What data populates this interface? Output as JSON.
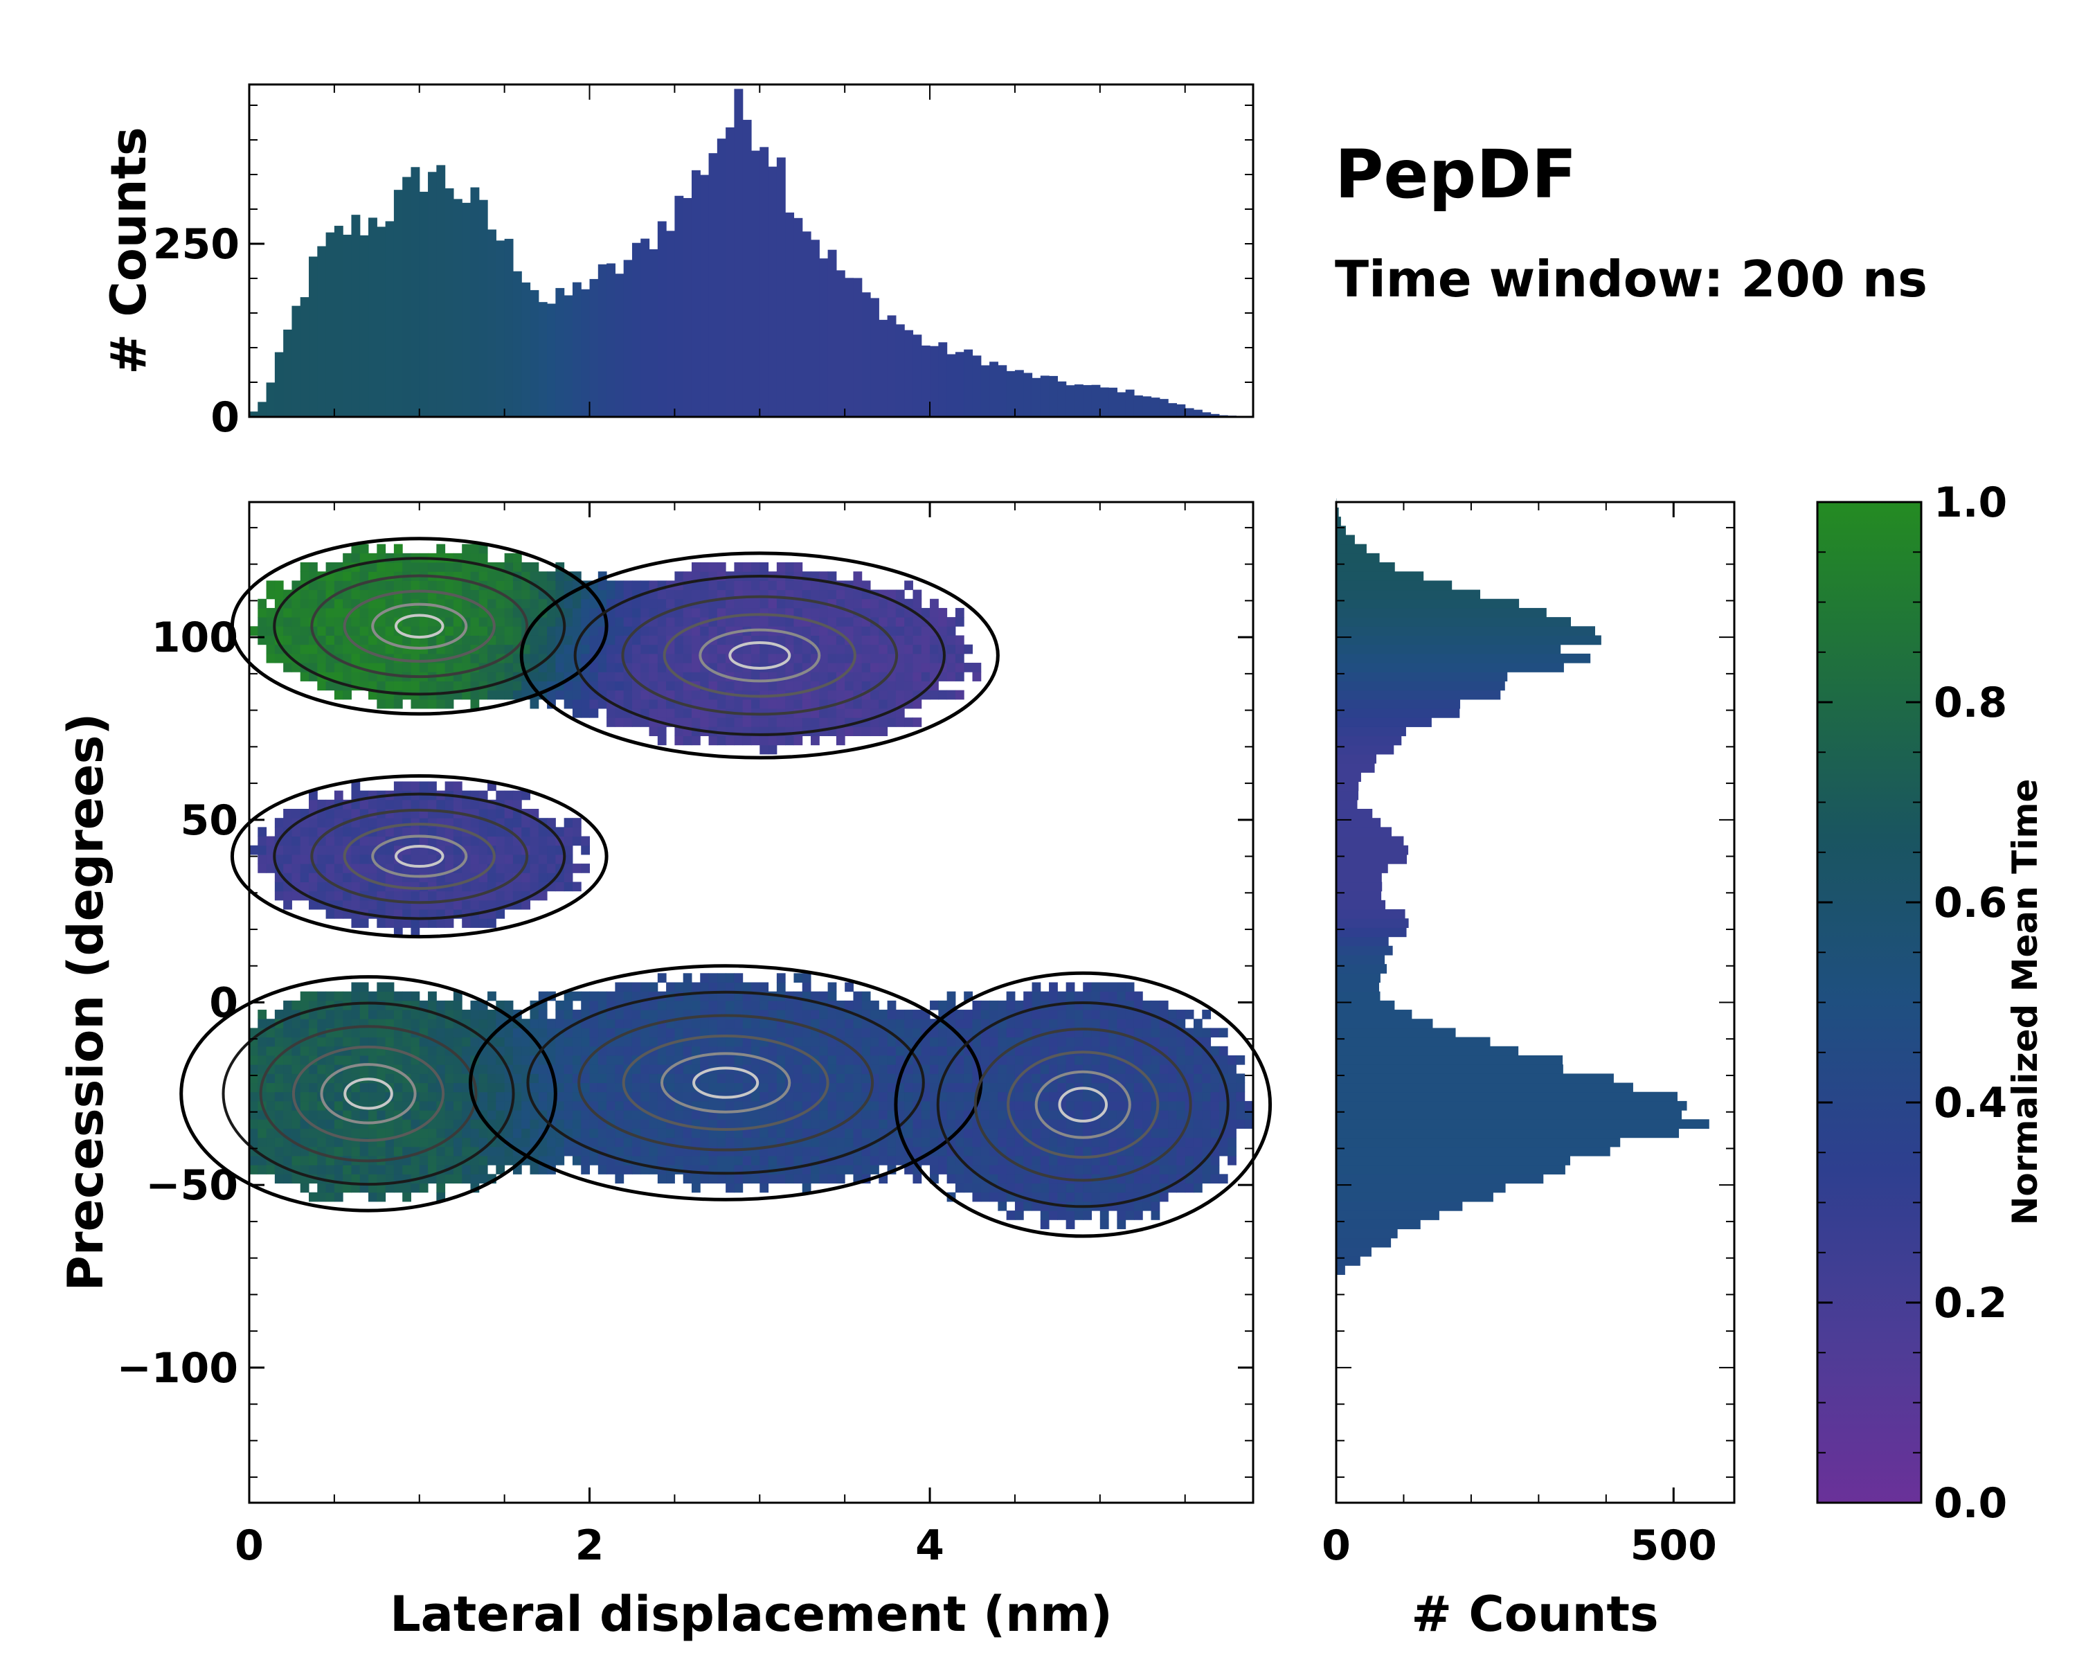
{
  "annotation": {
    "title": "PepDF",
    "subtitle": "Time window: 200 ns"
  },
  "chart_data": [
    {
      "id": "joint",
      "type": "heatmap",
      "xlabel": "Lateral displacement (nm)",
      "ylabel": "Precession (degrees)",
      "xlim": [
        0,
        5.9
      ],
      "ylim": [
        -137,
        137
      ],
      "xticks": [
        0,
        2,
        4
      ],
      "yticks": [
        -100,
        -50,
        0,
        50,
        100
      ],
      "xtick_labels": [
        "0",
        "2",
        "4"
      ],
      "ytick_labels": [
        "−100",
        "−50",
        "0",
        "50",
        "100"
      ],
      "clusters": [
        {
          "name": "upper-left",
          "cx": 1.0,
          "cy": 103,
          "sx": 0.55,
          "sy": 12,
          "time": 0.92
        },
        {
          "name": "upper-right",
          "cx": 3.0,
          "cy": 95,
          "sx": 0.7,
          "sy": 14,
          "time": 0.2
        },
        {
          "name": "middle-left",
          "cx": 1.0,
          "cy": 40,
          "sx": 0.55,
          "sy": 11,
          "time": 0.25
        },
        {
          "name": "lower-left",
          "cx": 0.7,
          "cy": -25,
          "sx": 0.55,
          "sy": 16,
          "time": 0.72
        },
        {
          "name": "lower-center",
          "cx": 2.8,
          "cy": -22,
          "sx": 0.75,
          "sy": 16,
          "time": 0.42
        },
        {
          "name": "lower-right",
          "cx": 4.9,
          "cy": -28,
          "sx": 0.55,
          "sy": 18,
          "time": 0.38
        }
      ]
    },
    {
      "id": "top-hist",
      "type": "bar",
      "ylabel": "# Counts",
      "xlim": [
        0,
        5.9
      ],
      "ylim": [
        0,
        480
      ],
      "yticks": [
        0,
        250
      ],
      "ytick_labels": [
        "0",
        "250"
      ],
      "bin_width": 0.05,
      "profile_x": [
        0,
        0.1,
        0.25,
        0.4,
        0.55,
        0.75,
        0.9,
        1.05,
        1.2,
        1.35,
        1.5,
        1.65,
        1.75,
        1.9,
        2.0,
        2.15,
        2.3,
        2.45,
        2.6,
        2.7,
        2.8,
        2.9,
        3.0,
        3.1,
        3.2,
        3.35,
        3.5,
        3.65,
        3.8,
        3.95,
        4.05,
        4.15,
        4.3,
        4.5,
        4.7,
        4.9,
        5.1,
        5.3,
        5.5,
        5.6,
        5.7,
        5.9
      ],
      "profile_y": [
        0,
        30,
        140,
        230,
        270,
        285,
        315,
        360,
        335,
        300,
        250,
        200,
        160,
        180,
        200,
        210,
        240,
        285,
        330,
        380,
        420,
        440,
        420,
        380,
        310,
        250,
        205,
        170,
        140,
        110,
        100,
        95,
        85,
        65,
        55,
        45,
        40,
        30,
        15,
        8,
        3,
        0
      ]
    },
    {
      "id": "right-hist",
      "type": "bar",
      "orientation": "horizontal",
      "xlabel": "# Counts",
      "xlim": [
        0,
        590
      ],
      "ylim": [
        -137,
        137
      ],
      "xticks": [
        0,
        500
      ],
      "xtick_labels": [
        "0",
        "500"
      ],
      "bin_width": 2.5,
      "profile_x": [
        -137,
        -75,
        -70,
        -65,
        -60,
        -55,
        -50,
        -45,
        -40,
        -35,
        -30,
        -27,
        -24,
        -20,
        -15,
        -10,
        -5,
        0,
        5,
        10,
        15,
        20,
        25,
        30,
        35,
        40,
        45,
        50,
        55,
        60,
        65,
        70,
        75,
        80,
        85,
        90,
        95,
        100,
        105,
        110,
        115,
        120,
        125,
        130,
        137
      ],
      "profile_y": [
        0,
        0,
        40,
        80,
        140,
        200,
        280,
        360,
        420,
        480,
        530,
        480,
        440,
        380,
        300,
        200,
        120,
        80,
        60,
        70,
        80,
        100,
        90,
        60,
        70,
        110,
        100,
        60,
        30,
        30,
        60,
        80,
        120,
        190,
        230,
        280,
        350,
        370,
        320,
        250,
        160,
        80,
        40,
        10,
        0
      ]
    },
    {
      "id": "colorbar",
      "type": "heatmap",
      "label": "Normalized Mean Time",
      "range": [
        0.0,
        1.0
      ],
      "ticks": [
        0.0,
        0.2,
        0.4,
        0.6,
        0.8,
        1.0
      ],
      "tick_labels": [
        "0.0",
        "0.2",
        "0.4",
        "0.6",
        "0.8",
        "1.0"
      ],
      "colormap": [
        "#6a3199",
        "#4c3d96",
        "#2e3f8f",
        "#1f4f80",
        "#1a5560",
        "#1f6f3f",
        "#248b22"
      ]
    }
  ]
}
